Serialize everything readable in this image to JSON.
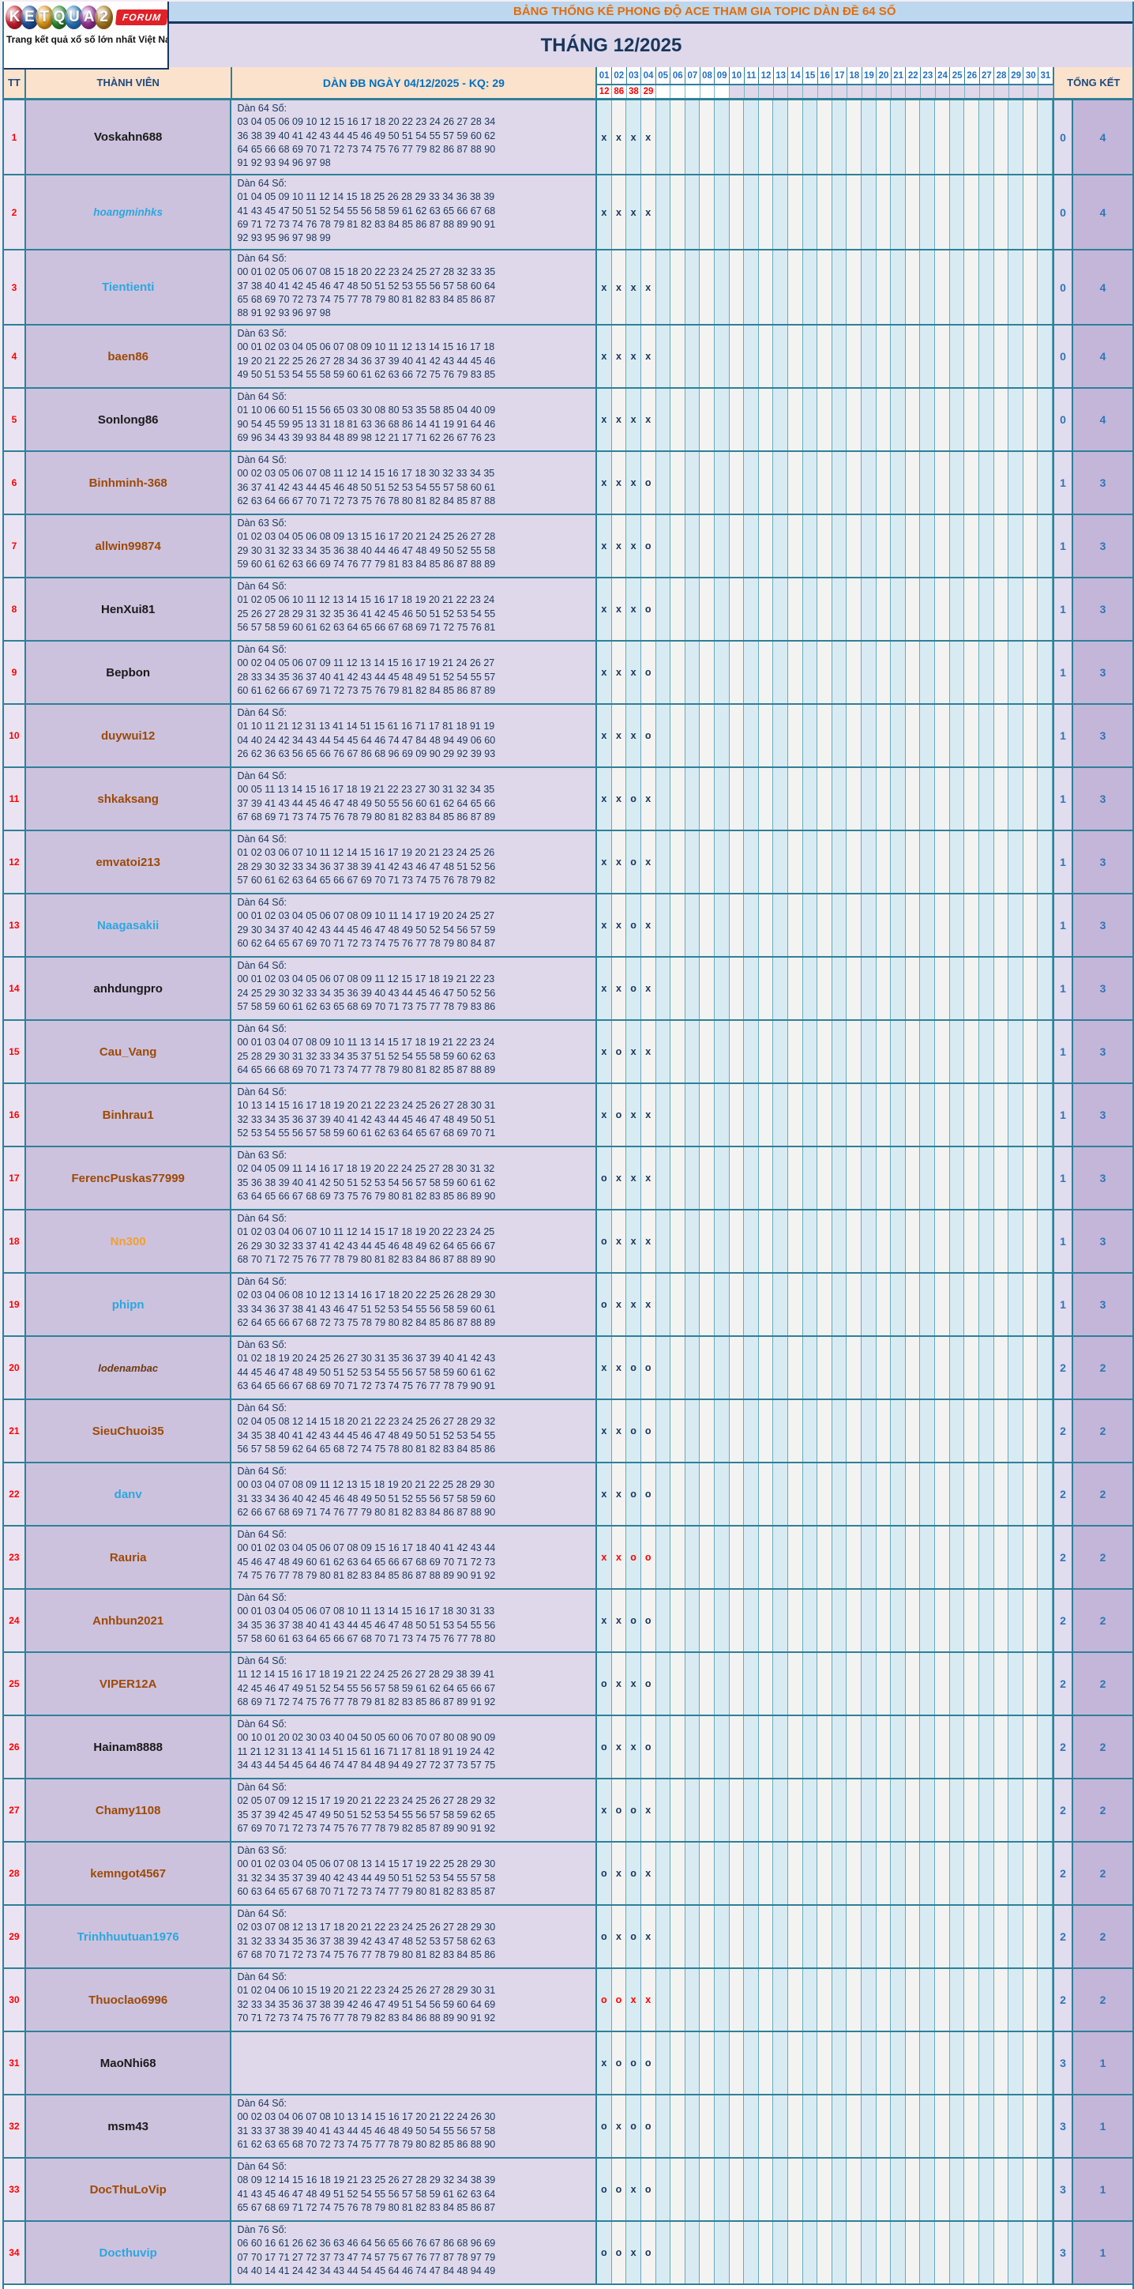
{
  "logo": {
    "letters": [
      {
        "ch": "K",
        "color": "#cf1f2f"
      },
      {
        "ch": "E",
        "color": "#2053a4"
      },
      {
        "ch": "T",
        "color": "#e09a18"
      },
      {
        "ch": "Q",
        "color": "#2f8f2f"
      },
      {
        "ch": "U",
        "color": "#2b79c2"
      },
      {
        "ch": "A",
        "color": "#993399"
      },
      {
        "ch": "2",
        "color": "#b07d1e"
      }
    ],
    "forum": "FORUM",
    "tagline": "Trang kết quả xổ số lớn nhất Việt Nam"
  },
  "header": {
    "title": "BẢNG THỐNG KÊ PHONG ĐỘ ACE THAM GIA TOPIC DÀN ĐỀ 64 SỐ",
    "month": "THÁNG 12/2025"
  },
  "columns": {
    "tt": "TT",
    "member": "THÀNH VIÊN",
    "dan": "DÀN ĐB NGÀY 04/12/2025 - KQ: 29",
    "total": "TỔNG KẾT"
  },
  "days": [
    "01",
    "02",
    "03",
    "04",
    "05",
    "06",
    "07",
    "08",
    "09",
    "10",
    "11",
    "12",
    "13",
    "14",
    "15",
    "16",
    "17",
    "18",
    "19",
    "20",
    "21",
    "22",
    "23",
    "24",
    "25",
    "26",
    "27",
    "28",
    "29",
    "30",
    "31"
  ],
  "day_results": [
    "12",
    "86",
    "38",
    "29"
  ],
  "colors": {
    "border_teal": "#2e8099",
    "title_bg": "#bdd7ee",
    "title_text": "#e36c0a",
    "month_bg": "#ded8ea",
    "month_text": "#17365d",
    "header_bg": "#fbe2cd",
    "result_red": "#ff0000",
    "numbers_navy": "#17365d",
    "totals_blue": "#2e75b6"
  },
  "rows": [
    {
      "tt": "1",
      "name": "Voskahn688",
      "style": "black",
      "label": "Dàn 64 Số:",
      "lines": [
        "03 04 05 06 09 10 12 15 16 17 18 20 22 23 24 26 27 28 34",
        "36 38 39 40 41 42 43 44 45 46 49 50 51 54 55 57 59 60 62",
        "64 65 66 68 69 70 71 72 73 74 75 76 77 79 82 86 87 88 90",
        "91 92 93 94 96 97 98"
      ],
      "marks": [
        "x",
        "x",
        "x",
        "x"
      ],
      "marks_red": false,
      "totals": [
        "0",
        "4"
      ]
    },
    {
      "tt": "2",
      "name": "hoangminhks",
      "style": "blue-italic",
      "label": "Dàn 64 Số:",
      "lines": [
        "01 04 05 09 10 11 12 14 15 18 25 26 28 29 33 34 36 38 39",
        "41 43 45 47 50 51 52 54 55 56 58 59 61 62 63 65 66 67 68",
        "69 71 72 73 74 76 78 79 81 82 83 84 85 86 87 88 89 90 91",
        "92 93 95 96 97 98 99"
      ],
      "marks": [
        "x",
        "x",
        "x",
        "x"
      ],
      "marks_red": false,
      "totals": [
        "0",
        "4"
      ]
    },
    {
      "tt": "3",
      "name": "Tientienti",
      "style": "blue",
      "label": "Dàn 64 Số:",
      "lines": [
        "00 01 02 05 06 07 08 15 18 20 22 23 24 25 27 28 32 33 35",
        "37 38 40 41 42 45 46 47 48 50 51 52 53 55 56 57 58 60 64",
        "65 68 69 70 72 73 74 75 77 78 79 80 81 82 83 84 85 86 87",
        "88 91 92 93 96 97 98"
      ],
      "marks": [
        "x",
        "x",
        "x",
        "x"
      ],
      "marks_red": false,
      "totals": [
        "0",
        "4"
      ]
    },
    {
      "tt": "4",
      "name": "baen86",
      "style": "brown",
      "label": "Dàn 63 Số:",
      "lines": [
        "00 01 02 03 04 05 06 07 08 09 10 11 12 13 14 15 16 17 18",
        "19 20 21 22 25 26 27 28 34 36 37 39 40 41 42 43 44 45 46",
        "49 50 51 53 54 55 58 59 60 61 62 63 66 72 75 76 79 83 85"
      ],
      "marks": [
        "x",
        "x",
        "x",
        "x"
      ],
      "marks_red": false,
      "totals": [
        "0",
        "4"
      ]
    },
    {
      "tt": "5",
      "name": "Sonlong86",
      "style": "black",
      "label": "Dàn 64 Số:",
      "lines": [
        "01 10 06 60 51 15 56 65 03 30 08 80 53 35 58 85 04 40 09",
        "90 54 45 59 95 13 31 18 81 63 36 68 86 14 41 19 91 64 46",
        "69 96 34 43 39 93 84 48 89 98 12 21 17 71 62 26 67 76 23"
      ],
      "marks": [
        "x",
        "x",
        "x",
        "x"
      ],
      "marks_red": false,
      "totals": [
        "0",
        "4"
      ]
    },
    {
      "tt": "6",
      "name": "Binhminh-368",
      "style": "brown",
      "label": "Dàn 64 Số:",
      "lines": [
        "00 02 03 05 06 07 08 11 12 14 15 16 17 18 30 32 33 34 35",
        "36 37 41 42 43 44 45 46 48 50 51 52 53 54 55 57 58 60 61",
        "62 63 64 66 67 70 71 72 73 75 76 78 80 81 82 84 85 87 88"
      ],
      "marks": [
        "x",
        "x",
        "x",
        "o"
      ],
      "marks_red": false,
      "totals": [
        "1",
        "3"
      ]
    },
    {
      "tt": "7",
      "name": "allwin99874",
      "style": "brown",
      "label": "Dàn 63 Số:",
      "lines": [
        "01 02 03 04 05 06 08 09 13 15 16 17 20 21 24 25 26 27 28",
        "29 30 31 32 33 34 35 36 38 40 44 46 47 48 49 50 52 55 58",
        "59 60 61 62 63 66 69 74 76 77 79 81 83 84 85 86 87 88 89"
      ],
      "marks": [
        "x",
        "x",
        "x",
        "o"
      ],
      "marks_red": false,
      "totals": [
        "1",
        "3"
      ]
    },
    {
      "tt": "8",
      "name": "HenXui81",
      "style": "black",
      "label": "Dàn 64 Số:",
      "lines": [
        "01 02 05 06 10 11 12 13 14 15 16 17 18 19 20 21 22 23 24",
        "25 26 27 28 29 31 32 35 36 41 42 45 46 50 51 52 53 54 55",
        "56 57 58 59 60 61 62 63 64 65 66 67 68 69 71 72 75 76 81"
      ],
      "marks": [
        "x",
        "x",
        "x",
        "o"
      ],
      "marks_red": false,
      "totals": [
        "1",
        "3"
      ]
    },
    {
      "tt": "9",
      "name": "Bepbon",
      "style": "black",
      "label": "Dàn 64 Số:",
      "lines": [
        "00 02 04 05 06 07 09 11 12 13 14 15 16 17 19 21 24 26 27",
        "28 33 34 35 36 37 40 41 42 43 44 45 48 49 51 52 54 55 57",
        "60 61 62 66 67 69 71 72 73 75 76 79 81 82 84 85 86 87 89"
      ],
      "marks": [
        "x",
        "x",
        "x",
        "o"
      ],
      "marks_red": false,
      "totals": [
        "1",
        "3"
      ]
    },
    {
      "tt": "10",
      "name": "duywui12",
      "style": "brown",
      "label": "Dàn 64 Số:",
      "lines": [
        "01 10 11 21 12 31 13 41 14 51 15 61 16 71 17 81 18 91 19",
        "04 40 24 42 34 43 44 54 45 64 46 74 47 84 48 94 49 06 60",
        "26 62 36 63 56 65 66 76 67 86 68 96 69 09 90 29 92 39 93"
      ],
      "marks": [
        "x",
        "x",
        "x",
        "o"
      ],
      "marks_red": false,
      "totals": [
        "1",
        "3"
      ]
    },
    {
      "tt": "11",
      "name": "shkaksang",
      "style": "brown",
      "label": "Dàn 64 Số:",
      "lines": [
        "00 05 11 13 14 15 16 17 18 19 21 22 23 27 30 31 32 34 35",
        "37 39 41 43 44 45 46 47 48 49 50 55 56 60 61 62 64 65 66",
        "67 68 69 71 73 74 75 76 78 79 80 81 82 83 84 85 86 87 89"
      ],
      "marks": [
        "x",
        "x",
        "o",
        "x"
      ],
      "marks_red": false,
      "totals": [
        "1",
        "3"
      ]
    },
    {
      "tt": "12",
      "name": "emvatoi213",
      "style": "brown",
      "label": "Dàn 64 Số:",
      "lines": [
        "01 02 03 06 07 10 11 12 14 15 16 17 19 20 21 23 24 25 26",
        "28 29 30 32 33 34 36 37 38 39 41 42 43 46 47 48 51 52 56",
        "57 60 61 62 63 64 65 66 67 69 70 71 73 74 75 76 78 79 82"
      ],
      "marks": [
        "x",
        "x",
        "o",
        "x"
      ],
      "marks_red": false,
      "totals": [
        "1",
        "3"
      ]
    },
    {
      "tt": "13",
      "name": "Naagasakii",
      "style": "blue",
      "label": "Dàn 64 Số:",
      "lines": [
        "00 01 02 03 04 05 06 07 08 09 10 11 14 17 19 20 24 25 27",
        "29 30 34 37 40 42 43 44 45 46 47 48 49 50 52 54 56 57 59",
        "60 62 64 65 67 69 70 71 72 73 74 75 76 77 78 79 80 84 87"
      ],
      "marks": [
        "x",
        "x",
        "o",
        "x"
      ],
      "marks_red": false,
      "totals": [
        "1",
        "3"
      ]
    },
    {
      "tt": "14",
      "name": "anhdungpro",
      "style": "black",
      "label": "Dàn 64 Số:",
      "lines": [
        "00 01 02 03 04 05 06 07 08 09 11 12 15 17 18 19 21 22 23",
        "24 25 29 30 32 33 34 35 36 39 40 43 44 45 46 47 50 52 56",
        "57 58 59 60 61 62 63 65 68 69 70 71 73 75 77 78 79 83 86"
      ],
      "marks": [
        "x",
        "x",
        "o",
        "x"
      ],
      "marks_red": false,
      "totals": [
        "1",
        "3"
      ]
    },
    {
      "tt": "15",
      "name": "Cau_Vang",
      "style": "brown",
      "label": "Dàn 64 Số:",
      "lines": [
        "00 01 03 04 07 08 09 10 11 13 14 15 17 18 19 21 22 23 24",
        "25 28 29 30 31 32 33 34 35 37 51 52 54 55 58 59 60 62 63",
        "64 65 66 68 69 70 71 73 74 77 78 79 80 81 82 85 87 88 89"
      ],
      "marks": [
        "x",
        "o",
        "x",
        "x"
      ],
      "marks_red": false,
      "totals": [
        "1",
        "3"
      ]
    },
    {
      "tt": "16",
      "name": "Binhrau1",
      "style": "brown",
      "label": "Dàn 64 Số:",
      "lines": [
        "10 13 14 15 16 17 18 19 20 21 22 23 24 25 26 27 28 30 31",
        "32 33 34 35 36 37 39 40 41 42 43 44 45 46 47 48 49 50 51",
        "52 53 54 55 56 57 58 59 60 61 62 63 64 65 67 68 69 70 71"
      ],
      "marks": [
        "x",
        "o",
        "x",
        "x"
      ],
      "marks_red": false,
      "totals": [
        "1",
        "3"
      ]
    },
    {
      "tt": "17",
      "name": "FerencPuskas77999",
      "style": "brown",
      "label": "Dàn 63 Số:",
      "lines": [
        "02 04 05 09 11 14 16 17 18 19 20 22 24 25 27 28 30 31 32",
        "35 36 38 39 40 41 42 50 51 52 53 54 56 57 58 59 60 61 62",
        "63 64 65 66 67 68 69 73 75 76 79 80 81 82 83 85 86 89 90"
      ],
      "marks": [
        "o",
        "x",
        "x",
        "x"
      ],
      "marks_red": false,
      "totals": [
        "1",
        "3"
      ]
    },
    {
      "tt": "18",
      "name": "Nn300",
      "style": "orange",
      "label": "Dàn 64 Số:",
      "lines": [
        "01 02 03 04 06 07 10 11 12 14 15 17 18 19 20 22 23 24 25",
        "26 29 30 32 33 37 41 42 43 44 45 46 48 49 62 64 65 66 67",
        "68 70 71 72 75 76 77 78 79 80 81 82 83 84 86 87 88 89 90"
      ],
      "marks": [
        "o",
        "x",
        "x",
        "x"
      ],
      "marks_red": false,
      "totals": [
        "1",
        "3"
      ]
    },
    {
      "tt": "19",
      "name": "phipn",
      "style": "blue",
      "label": "Dàn 64 Số:",
      "lines": [
        "02 03 04 06 08 10 12 13 14 16 17 18 20 22 25 26 28 29 30",
        "33 34 36 37 38 41 43 46 47 51 52 53 54 55 56 58 59 60 61",
        "62 64 65 66 67 68 72 73 75 78 79 80 82 84 85 86 87 88 89"
      ],
      "marks": [
        "o",
        "x",
        "x",
        "x"
      ],
      "marks_red": false,
      "totals": [
        "1",
        "3"
      ]
    },
    {
      "tt": "20",
      "name": "lodenambac",
      "style": "brown-italic",
      "label": "Dàn 63 Số:",
      "lines": [
        "01 02 18 19 20 24 25 26 27 30 31 35 36 37 39 40 41 42 43",
        "44 45 46 47 48 49 50 51 52 53 54 55 56 57 58 59 60 61 62",
        "63 64 65 66 67 68 69 70 71 72 73 74 75 76 77 78 79 90 91"
      ],
      "marks": [
        "x",
        "x",
        "o",
        "o"
      ],
      "marks_red": false,
      "totals": [
        "2",
        "2"
      ]
    },
    {
      "tt": "21",
      "name": "SieuChuoi35",
      "style": "brown",
      "label": "Dàn 64 Số:",
      "lines": [
        "02 04 05 08 12 14 15 18 20 21 22 23 24 25 26 27 28 29 32",
        "34 35 38 40 41 42 43 44 45 46 47 48 49 50 51 52 53 54 55",
        "56 57 58 59 62 64 65 68 72 74 75 78 80 81 82 83 84 85 86"
      ],
      "marks": [
        "x",
        "x",
        "o",
        "o"
      ],
      "marks_red": false,
      "totals": [
        "2",
        "2"
      ]
    },
    {
      "tt": "22",
      "name": "danv",
      "style": "blue",
      "label": "Dàn 64 Số:",
      "lines": [
        "00 03 04 07 08 09 11 12 13 15 18 19 20 21 22 25 28 29 30",
        "31 33 34 36 40 42 45 46 48 49 50 51 52 55 56 57 58 59 60",
        "62 66 67 68 69 71 74 76 77 79 80 81 82 83 84 86 87 88 90"
      ],
      "marks": [
        "x",
        "x",
        "o",
        "o"
      ],
      "marks_red": false,
      "totals": [
        "2",
        "2"
      ]
    },
    {
      "tt": "23",
      "name": "Rauria",
      "style": "brown",
      "label": "Dàn 64 Số:",
      "lines": [
        "00 01 02 03 04 05 06 07 08 09 15 16 17 18 40 41 42 43 44",
        "45 46 47 48 49 60 61 62 63 64 65 66 67 68 69 70 71 72 73",
        "74 75 76 77 78 79 80 81 82 83 84 85 86 87 88 89 90 91 92"
      ],
      "marks": [
        "x",
        "x",
        "o",
        "o"
      ],
      "marks_red": true,
      "totals": [
        "2",
        "2"
      ]
    },
    {
      "tt": "24",
      "name": "Anhbun2021",
      "style": "brown",
      "label": "Dàn 64 Số:",
      "lines": [
        "00 01 03 04 05 06 07 08 10 11 13 14 15 16 17 18 30 31 33",
        "34 35 36 37 38 40 41 43 44 45 46 47 48 50 51 53 54 55 56",
        "57 58 60 61 63 64 65 66 67 68 70 71 73 74 75 76 77 78 80"
      ],
      "marks": [
        "x",
        "x",
        "o",
        "o"
      ],
      "marks_red": false,
      "totals": [
        "2",
        "2"
      ]
    },
    {
      "tt": "25",
      "name": "VIPER12A",
      "style": "brown",
      "label": "Dàn 64 Số:",
      "lines": [
        "11 12 14 15 16 17 18 19 21 22 24 25 26 27 28 29 38 39 41",
        "42 45 46 47 49 51 52 54 55 56 57 58 59 61 62 64 65 66 67",
        "68 69 71 72 74 75 76 77 78 79 81 82 83 85 86 87 89 91 92"
      ],
      "marks": [
        "o",
        "x",
        "x",
        "o"
      ],
      "marks_red": false,
      "totals": [
        "2",
        "2"
      ]
    },
    {
      "tt": "26",
      "name": "Hainam8888",
      "style": "black",
      "label": "Dàn 64 Số:",
      "lines": [
        "00 10 01 20 02 30 03 40 04 50 05 60 06 70 07 80 08 90 09",
        "11 21 12 31 13 41 14 51 15 61 16 71 17 81 18 91 19 24 42",
        "34 43 44 54 45 64 46 74 47 84 48 94 49 27 72 37 73 57 75"
      ],
      "marks": [
        "o",
        "x",
        "x",
        "o"
      ],
      "marks_red": false,
      "totals": [
        "2",
        "2"
      ]
    },
    {
      "tt": "27",
      "name": "Chamy1108",
      "style": "brown",
      "label": "Dàn 64 Số:",
      "lines": [
        "02 05 07 09 12 15 17 19 20 21 22 23 24 25 26 27 28 29 32",
        "35 37 39 42 45 47 49 50 51 52 53 54 55 56 57 58 59 62 65",
        "67 69 70 71 72 73 74 75 76 77 78 79 82 85 87 89 90 91 92"
      ],
      "marks": [
        "x",
        "o",
        "o",
        "x"
      ],
      "marks_red": false,
      "totals": [
        "2",
        "2"
      ]
    },
    {
      "tt": "28",
      "name": "kemngot4567",
      "style": "brown",
      "label": "Dàn 63 Số:",
      "lines": [
        "00 01 02 03 04 05 06 07 08 13 14 15 17 19 22 25 28 29 30",
        "31 32 34 35 37 39 40 42 43 44 49 50 51 52 53 54 55 57 58",
        "60 63 64 65 67 68 70 71 72 73 74 77 79 80 81 82 83 85 87"
      ],
      "marks": [
        "o",
        "x",
        "o",
        "x"
      ],
      "marks_red": false,
      "totals": [
        "2",
        "2"
      ]
    },
    {
      "tt": "29",
      "name": "Trinhhuutuan1976",
      "style": "blue",
      "label": "Dàn 64 Số:",
      "lines": [
        "02 03 07 08 12 13 17 18 20 21 22 23 24 25 26 27 28 29 30",
        "31 32 33 34 35 36 37 38 39 42 43 47 48 52 53 57 58 62 63",
        "67 68 70 71 72 73 74 75 76 77 78 79 80 81 82 83 84 85 86"
      ],
      "marks": [
        "o",
        "x",
        "o",
        "x"
      ],
      "marks_red": false,
      "totals": [
        "2",
        "2"
      ]
    },
    {
      "tt": "30",
      "name": "Thuoclao6996",
      "style": "brown",
      "label": "Dàn 64 Số:",
      "lines": [
        "01 02 04 06 10 15 19 20 21 22 23 24 25 26 27 28 29 30 31",
        "32 33 34 35 36 37 38 39 42 46 47 49 51 54 56 59 60 64 69",
        "70 71 72 73 74 75 76 77 78 79 82 83 84 86 88 89 90 91 92"
      ],
      "marks": [
        "o",
        "o",
        "x",
        "x"
      ],
      "marks_red": true,
      "totals": [
        "2",
        "2"
      ]
    },
    {
      "tt": "31",
      "name": "MaoNhi68",
      "style": "black",
      "label": "",
      "lines": [],
      "marks": [
        "x",
        "o",
        "o",
        "o"
      ],
      "marks_red": false,
      "totals": [
        "3",
        "1"
      ]
    },
    {
      "tt": "32",
      "name": "msm43",
      "style": "black",
      "label": "Dàn 64 Số:",
      "lines": [
        "00 02 03 04 06 07 08 10 13 14 15 16 17 20 21 22 24 26 30",
        "31 33 37 38 39 40 41 43 44 45 46 48 49 50 54 55 56 57 58",
        "61 62 63 65 68 70 72 73 74 75 77 78 79 80 82 85 86 88 90"
      ],
      "marks": [
        "o",
        "x",
        "o",
        "o"
      ],
      "marks_red": false,
      "totals": [
        "3",
        "1"
      ]
    },
    {
      "tt": "33",
      "name": "DocThuLoVip",
      "style": "brown",
      "label": "Dàn 64 Số:",
      "lines": [
        "08 09 12 14 15 16 18 19 21 23 25 26 27 28 29 32 34 38 39",
        "41 43 45 46 47 48 49 51 52 54 55 56 57 58 59 61 62 63 64",
        "65 67 68 69 71 72 74 75 76 78 79 80 81 82 83 84 85 86 87"
      ],
      "marks": [
        "o",
        "o",
        "x",
        "o"
      ],
      "marks_red": false,
      "totals": [
        "3",
        "1"
      ]
    },
    {
      "tt": "34",
      "name": "Docthuvip",
      "style": "blue",
      "label": "Dàn 76 Số:",
      "lines": [
        "06 60 16 61 26 62 36 63 46 64 56 65 66 76 67 86 68 96 69",
        "07 70 17 71 27 72 37 73 47 74 57 75 67 76 77 87 78 97 79",
        "04 40 14 41 24 42 34 43 44 54 45 64 46 74 47 84 48 94 49"
      ],
      "marks": [
        "o",
        "o",
        "x",
        "o"
      ],
      "marks_red": false,
      "totals": [
        "3",
        "1"
      ]
    }
  ]
}
